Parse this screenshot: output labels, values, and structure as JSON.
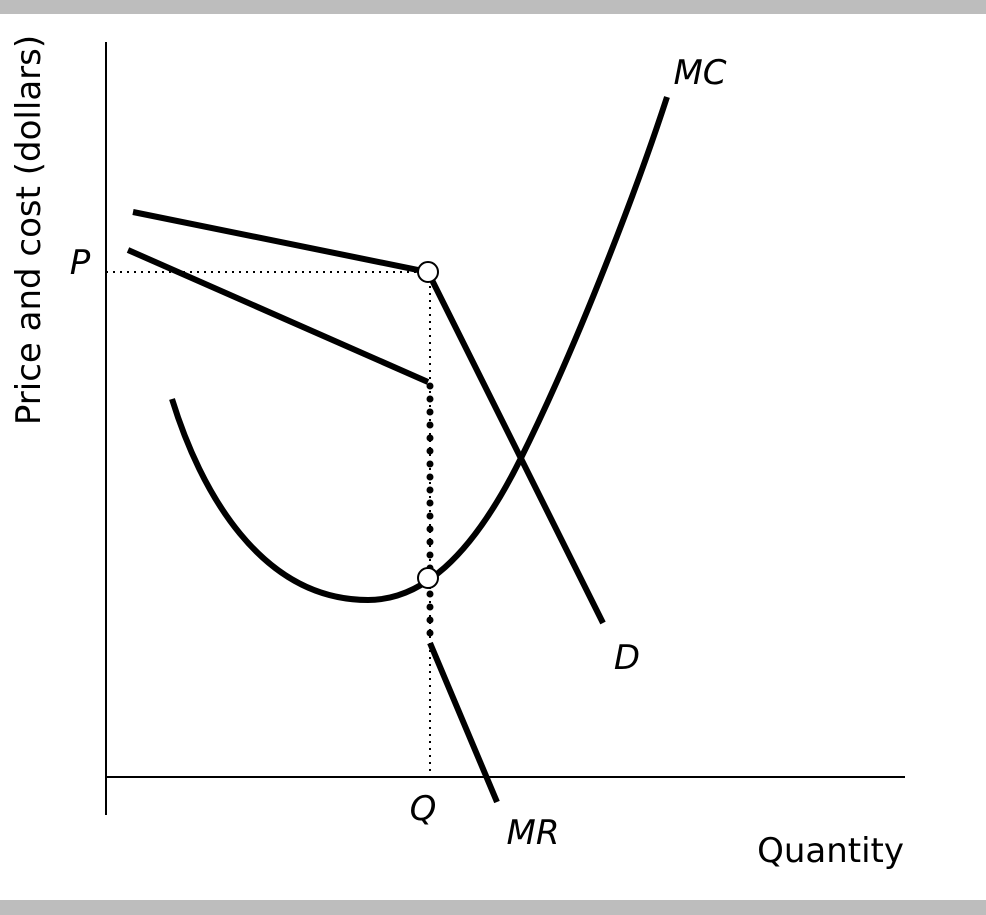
{
  "axes": {
    "y_label": "Price and cost (dollars)",
    "x_label": "Quantity"
  },
  "points": {
    "price": "P",
    "quantity": "Q"
  },
  "curves": {
    "marginal_cost": "MC",
    "demand": "D",
    "marginal_revenue": "MR"
  }
}
